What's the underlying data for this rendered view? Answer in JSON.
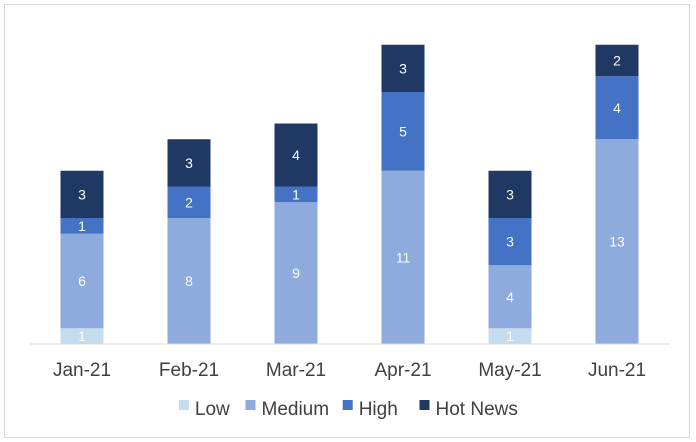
{
  "chart_data": {
    "type": "bar",
    "stacked": true,
    "categories": [
      "Jan-21",
      "Feb-21",
      "Mar-21",
      "Apr-21",
      "May-21",
      "Jun-21"
    ],
    "series": [
      {
        "name": "Low",
        "color": "#c5dcef",
        "values": [
          1,
          0,
          0,
          0,
          1,
          0
        ]
      },
      {
        "name": "Medium",
        "color": "#8faadc",
        "values": [
          6,
          8,
          9,
          11,
          4,
          13
        ]
      },
      {
        "name": "High",
        "color": "#4472c4",
        "values": [
          1,
          2,
          1,
          5,
          3,
          4
        ]
      },
      {
        "name": "Hot News",
        "color": "#1f3864",
        "values": [
          3,
          3,
          4,
          3,
          3,
          2
        ]
      }
    ],
    "ylim": [
      0,
      19
    ],
    "grid": false,
    "legend_position": "bottom"
  }
}
